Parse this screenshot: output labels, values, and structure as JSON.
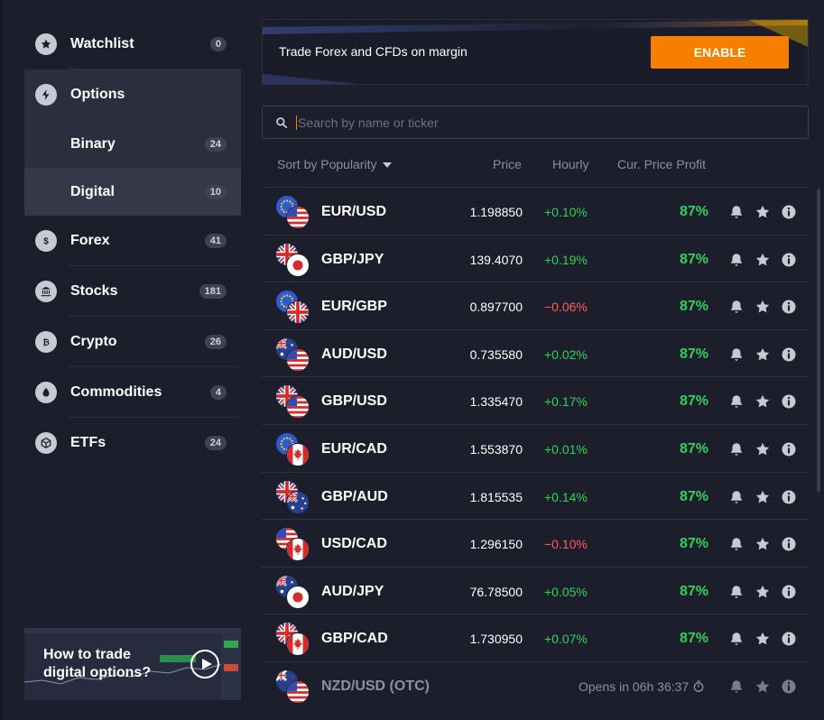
{
  "sidebar": {
    "items": [
      {
        "label": "Watchlist",
        "count": "0",
        "icon": "star-icon"
      },
      {
        "label": "Options",
        "count": "",
        "icon": "bolt-icon"
      },
      {
        "label": "Binary",
        "count": "24",
        "icon": ""
      },
      {
        "label": "Digital",
        "count": "10",
        "icon": ""
      },
      {
        "label": "Forex",
        "count": "41",
        "icon": "dollar-icon"
      },
      {
        "label": "Stocks",
        "count": "181",
        "icon": "bank-icon"
      },
      {
        "label": "Crypto",
        "count": "26",
        "icon": "bitcoin-icon"
      },
      {
        "label": "Commodities",
        "count": "4",
        "icon": "drop-icon"
      },
      {
        "label": "ETFs",
        "count": "24",
        "icon": "cube-icon"
      }
    ],
    "promo": {
      "title": "How to trade digital options?"
    }
  },
  "banner": {
    "message": "Trade Forex and CFDs on margin",
    "button": "ENABLE"
  },
  "search": {
    "placeholder": "Search by name or ticker"
  },
  "columns": {
    "sort": "Sort by Popularity",
    "price": "Price",
    "hourly": "Hourly",
    "profit": "Cur. Price Profit"
  },
  "colors": {
    "accent": "#f77f00",
    "up": "#2fd158",
    "down": "#ff5b5b"
  },
  "assets": [
    {
      "symbol": "EUR/USD",
      "price": "1.198850",
      "hourly": "+0.10%",
      "dir": "up",
      "profit": "87%",
      "flags": [
        "eu",
        "us"
      ]
    },
    {
      "symbol": "GBP/JPY",
      "price": "139.4070",
      "hourly": "+0.19%",
      "dir": "up",
      "profit": "87%",
      "flags": [
        "gb",
        "jp"
      ]
    },
    {
      "symbol": "EUR/GBP",
      "price": "0.897700",
      "hourly": "−0.06%",
      "dir": "down",
      "profit": "87%",
      "flags": [
        "eu",
        "gb"
      ]
    },
    {
      "symbol": "AUD/USD",
      "price": "0.735580",
      "hourly": "+0.02%",
      "dir": "up",
      "profit": "87%",
      "flags": [
        "au",
        "us"
      ]
    },
    {
      "symbol": "GBP/USD",
      "price": "1.335470",
      "hourly": "+0.17%",
      "dir": "up",
      "profit": "87%",
      "flags": [
        "gb",
        "us"
      ]
    },
    {
      "symbol": "EUR/CAD",
      "price": "1.553870",
      "hourly": "+0.01%",
      "dir": "up",
      "profit": "87%",
      "flags": [
        "eu",
        "ca"
      ]
    },
    {
      "symbol": "GBP/AUD",
      "price": "1.815535",
      "hourly": "+0.14%",
      "dir": "up",
      "profit": "87%",
      "flags": [
        "gb",
        "au"
      ]
    },
    {
      "symbol": "USD/CAD",
      "price": "1.296150",
      "hourly": "−0.10%",
      "dir": "down",
      "profit": "87%",
      "flags": [
        "us",
        "ca"
      ]
    },
    {
      "symbol": "AUD/JPY",
      "price": "76.78500",
      "hourly": "+0.05%",
      "dir": "up",
      "profit": "87%",
      "flags": [
        "au",
        "jp"
      ]
    },
    {
      "symbol": "GBP/CAD",
      "price": "1.730950",
      "hourly": "+0.07%",
      "dir": "up",
      "profit": "87%",
      "flags": [
        "gb",
        "ca"
      ]
    },
    {
      "symbol": "NZD/USD (OTC)",
      "opens": "Opens in 06h 36:37",
      "flags": [
        "nz",
        "us"
      ],
      "disabled": true
    }
  ]
}
